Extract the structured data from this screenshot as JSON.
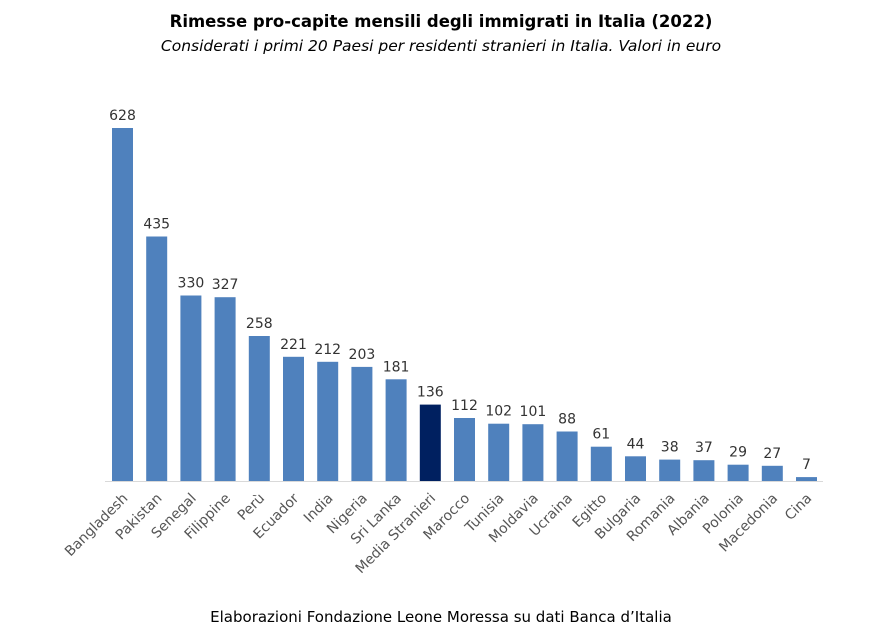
{
  "chart_data": {
    "type": "bar",
    "title": "Rimesse pro-capite mensili degli immigrati in Italia (2022)",
    "subtitle": "Considerati i primi 20 Paesi per residenti stranieri in Italia. Valori in euro",
    "xlabel": "",
    "ylabel": "",
    "ylim": [
      0,
      628
    ],
    "grid": false,
    "categories": [
      "Bangladesh",
      "Pakistan",
      "Senegal",
      "Filippine",
      "Perù",
      "Ecuador",
      "India",
      "Nigeria",
      "Sri Lanka",
      "Media Stranieri",
      "Marocco",
      "Tunisia",
      "Moldavia",
      "Ucraina",
      "Egitto",
      "Bulgaria",
      "Romania",
      "Albania",
      "Polonia",
      "Macedonia",
      "Cina"
    ],
    "values": [
      628,
      435,
      330,
      327,
      258,
      221,
      212,
      203,
      181,
      136,
      112,
      102,
      101,
      88,
      61,
      44,
      38,
      37,
      29,
      27,
      7
    ],
    "highlight_category": "Media Stranieri",
    "colors": {
      "bar": "#4F81BD",
      "highlight": "#002060",
      "axis": "#D9D9D9"
    }
  },
  "source": "Elaborazioni Fondazione Leone Moressa su dati Banca d’Italia"
}
